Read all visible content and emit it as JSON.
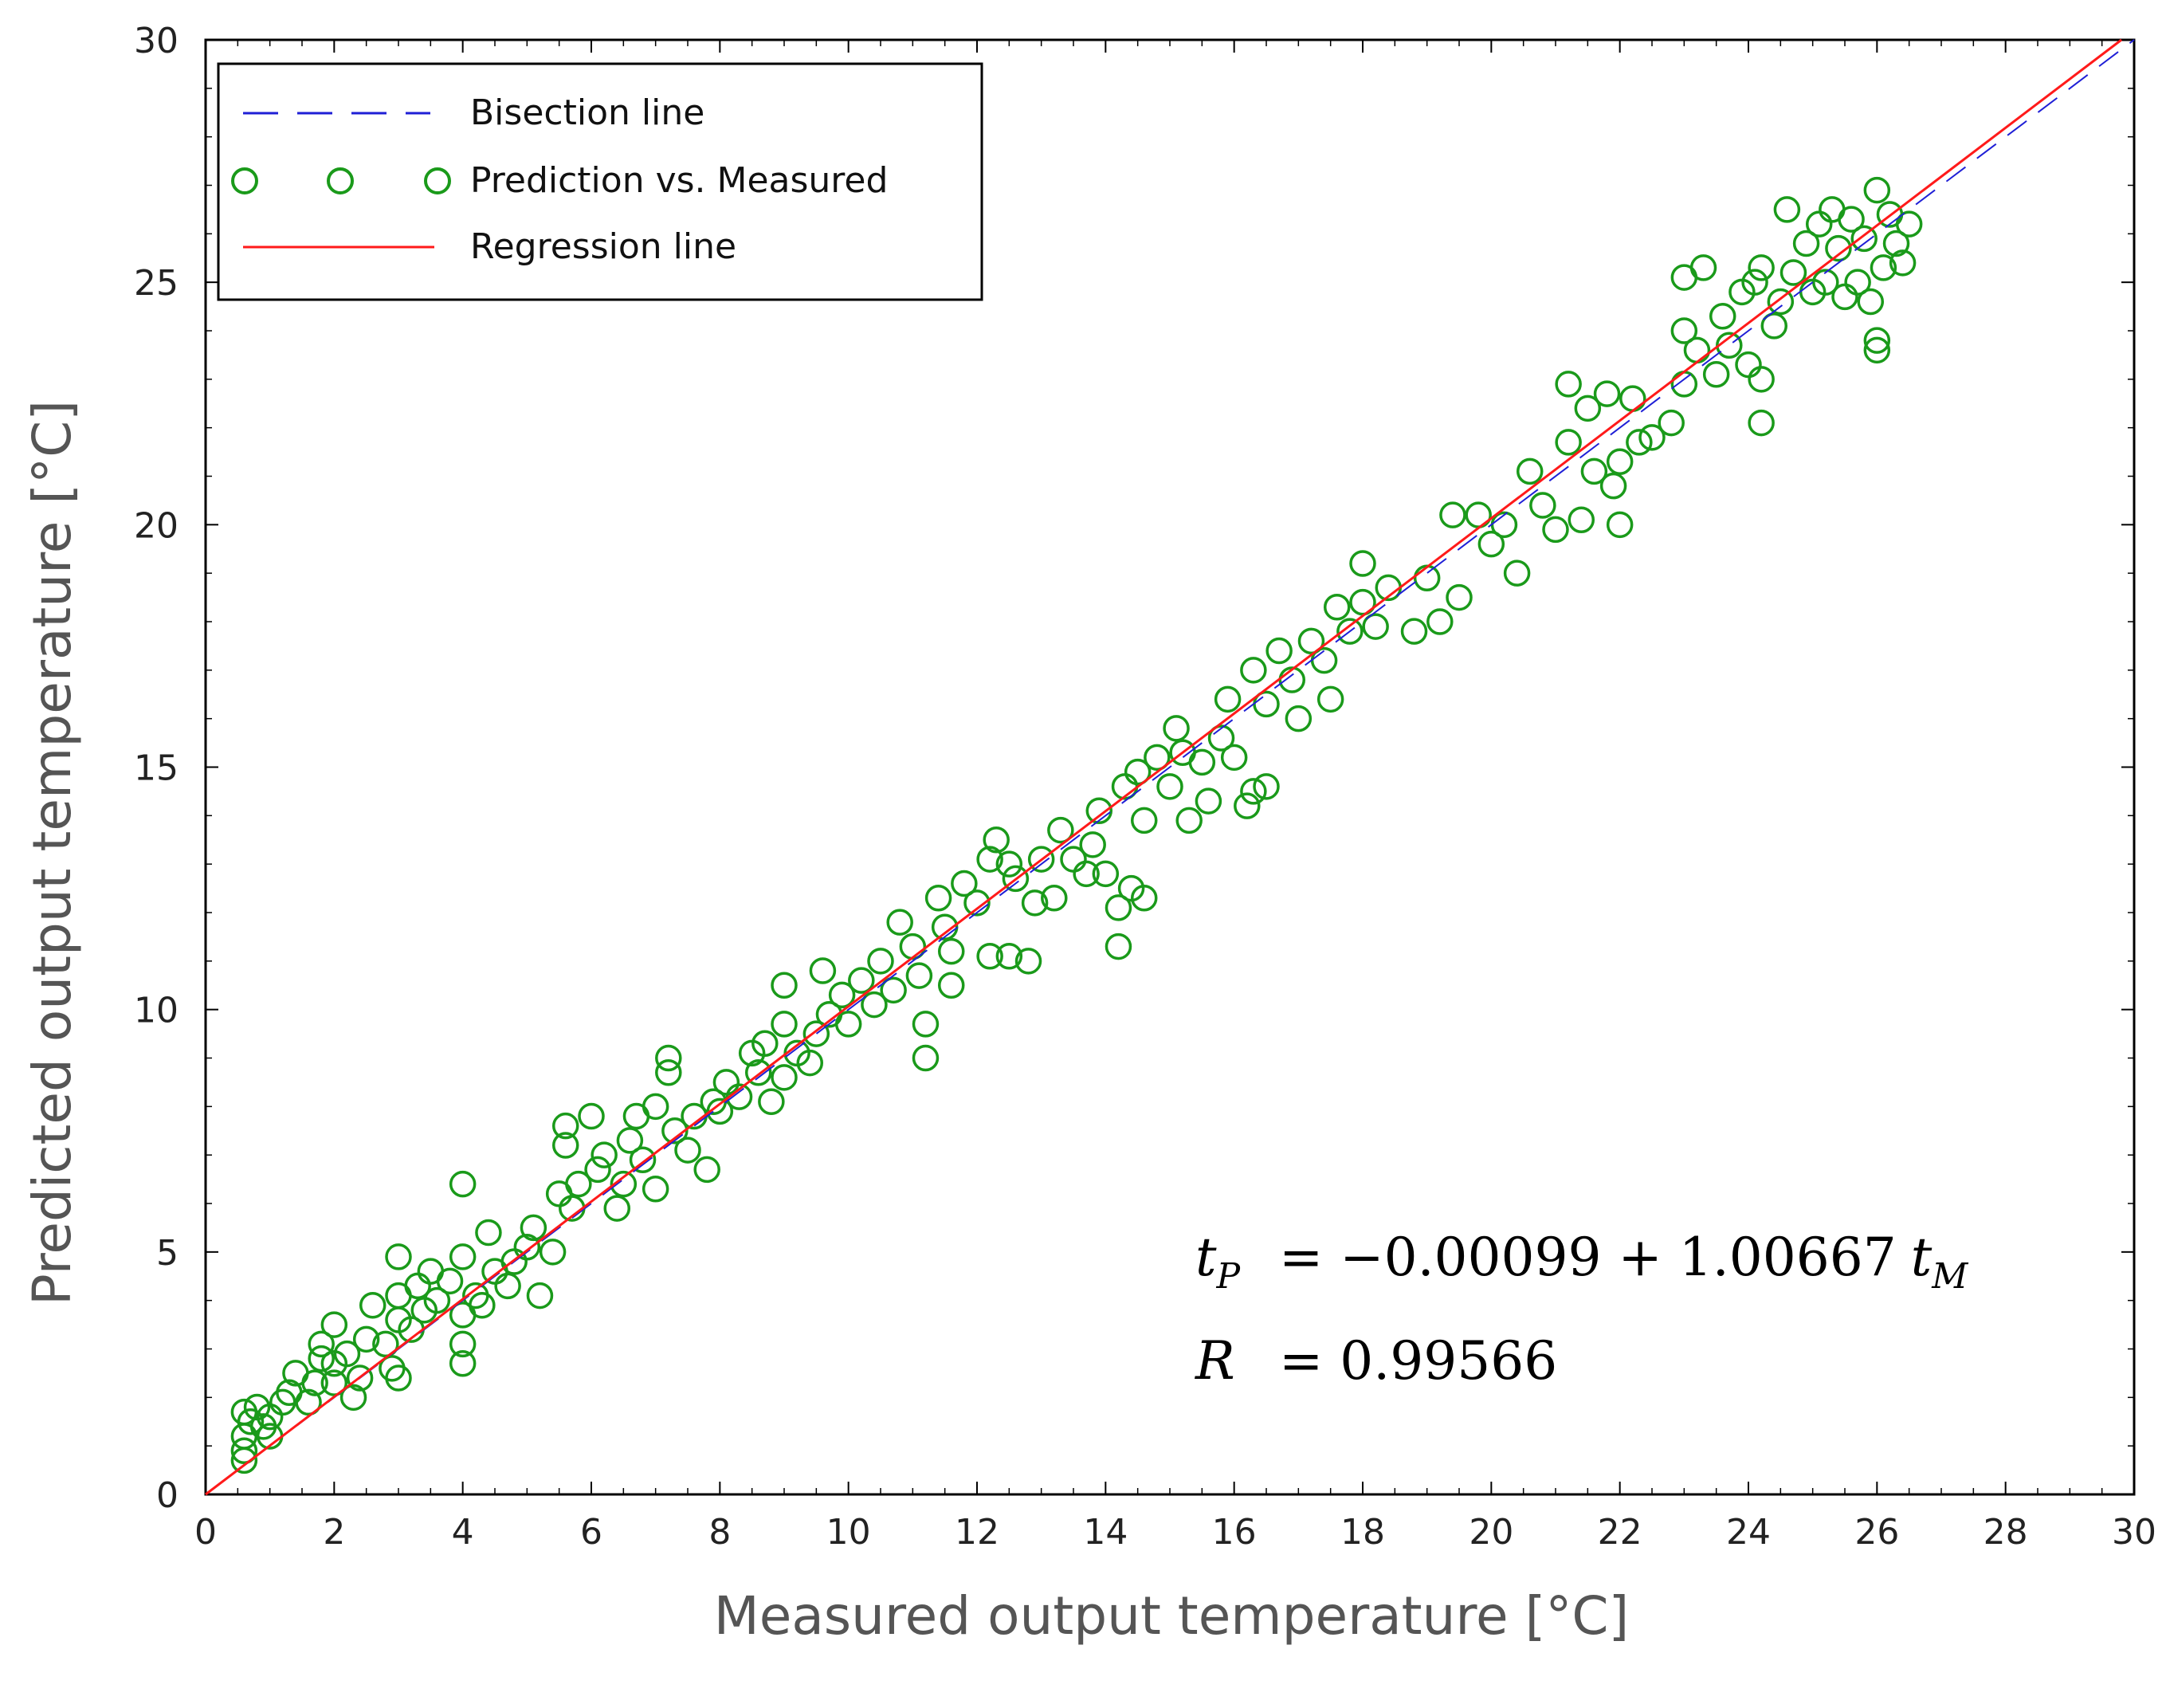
{
  "chart_data": {
    "type": "scatter",
    "xlabel": "Measured output temperature [°C]",
    "ylabel": "Predicted output temperature [°C]",
    "xlim": [
      0,
      30
    ],
    "ylim": [
      0,
      30
    ],
    "xticks": [
      "0",
      "2",
      "4",
      "6",
      "8",
      "10",
      "12",
      "14",
      "16",
      "18",
      "20",
      "22",
      "24",
      "26",
      "28",
      "30"
    ],
    "yticks": [
      "0",
      "5",
      "10",
      "15",
      "20",
      "25",
      "30"
    ],
    "grid": false,
    "legend_position": "top-left",
    "legend": [
      {
        "label": "Bisection line",
        "style": "dashed",
        "color": "#1f1fd6"
      },
      {
        "label": "Prediction vs. Measured",
        "style": "circle-markers",
        "color": "#1a9a1a"
      },
      {
        "label": "Regression line",
        "style": "solid",
        "color": "#ff1a1a"
      }
    ],
    "regression": {
      "intercept": -0.00099,
      "slope": 1.00667
    },
    "bisection": {
      "intercept": 0,
      "slope": 1
    },
    "annotations": {
      "equation": {
        "lhs": "t",
        "lhs_sub": "P",
        "rhs": "= −0.00099 + 1.00667",
        "var": "t",
        "var_sub": "M"
      },
      "correlation": {
        "lhs": "R",
        "rhs": "= 0.99566"
      }
    },
    "series": [
      {
        "name": "Prediction vs. Measured",
        "marker": "circle",
        "color": "#1a9a1a",
        "points": [
          [
            0.6,
            0.7
          ],
          [
            0.6,
            0.9
          ],
          [
            0.6,
            1.2
          ],
          [
            0.7,
            1.5
          ],
          [
            0.6,
            1.7
          ],
          [
            0.8,
            1.8
          ],
          [
            0.9,
            1.4
          ],
          [
            1.0,
            1.2
          ],
          [
            1.0,
            1.6
          ],
          [
            1.2,
            1.9
          ],
          [
            1.3,
            2.1
          ],
          [
            1.4,
            2.5
          ],
          [
            1.6,
            1.9
          ],
          [
            1.7,
            2.3
          ],
          [
            1.8,
            2.8
          ],
          [
            1.8,
            3.1
          ],
          [
            2.0,
            2.3
          ],
          [
            2.0,
            2.7
          ],
          [
            2.0,
            3.5
          ],
          [
            2.2,
            2.9
          ],
          [
            2.3,
            2.0
          ],
          [
            2.4,
            2.4
          ],
          [
            2.5,
            3.2
          ],
          [
            2.6,
            3.9
          ],
          [
            2.8,
            3.1
          ],
          [
            2.9,
            2.6
          ],
          [
            3.0,
            2.4
          ],
          [
            3.0,
            3.6
          ],
          [
            3.0,
            4.1
          ],
          [
            3.0,
            4.9
          ],
          [
            3.2,
            3.4
          ],
          [
            3.3,
            4.3
          ],
          [
            3.4,
            3.8
          ],
          [
            3.5,
            4.6
          ],
          [
            3.6,
            4.0
          ],
          [
            3.8,
            4.4
          ],
          [
            4.0,
            2.7
          ],
          [
            4.0,
            3.1
          ],
          [
            4.0,
            3.7
          ],
          [
            4.0,
            4.9
          ],
          [
            4.0,
            6.4
          ],
          [
            4.2,
            4.1
          ],
          [
            4.3,
            3.9
          ],
          [
            4.4,
            5.4
          ],
          [
            4.5,
            4.6
          ],
          [
            4.7,
            4.3
          ],
          [
            4.8,
            4.8
          ],
          [
            5.0,
            5.1
          ],
          [
            5.1,
            5.5
          ],
          [
            5.2,
            4.1
          ],
          [
            5.4,
            5.0
          ],
          [
            5.5,
            6.2
          ],
          [
            5.6,
            7.2
          ],
          [
            5.6,
            7.6
          ],
          [
            5.7,
            5.9
          ],
          [
            5.8,
            6.4
          ],
          [
            6.0,
            7.8
          ],
          [
            6.1,
            6.7
          ],
          [
            6.2,
            7.0
          ],
          [
            6.4,
            5.9
          ],
          [
            6.5,
            6.4
          ],
          [
            6.6,
            7.3
          ],
          [
            6.7,
            7.8
          ],
          [
            6.8,
            6.9
          ],
          [
            7.0,
            6.3
          ],
          [
            7.0,
            8.0
          ],
          [
            7.2,
            8.7
          ],
          [
            7.2,
            9.0
          ],
          [
            7.3,
            7.5
          ],
          [
            7.5,
            7.1
          ],
          [
            7.6,
            7.8
          ],
          [
            7.8,
            6.7
          ],
          [
            7.9,
            8.1
          ],
          [
            8.0,
            7.9
          ],
          [
            8.1,
            8.5
          ],
          [
            8.3,
            8.2
          ],
          [
            8.5,
            9.1
          ],
          [
            8.6,
            8.7
          ],
          [
            8.7,
            9.3
          ],
          [
            8.8,
            8.1
          ],
          [
            9.0,
            8.6
          ],
          [
            9.0,
            9.7
          ],
          [
            9.0,
            10.5
          ],
          [
            9.2,
            9.1
          ],
          [
            9.4,
            8.9
          ],
          [
            9.5,
            9.5
          ],
          [
            9.6,
            10.8
          ],
          [
            9.7,
            9.9
          ],
          [
            9.9,
            10.3
          ],
          [
            10.0,
            9.7
          ],
          [
            10.2,
            10.6
          ],
          [
            10.4,
            10.1
          ],
          [
            10.5,
            11.0
          ],
          [
            10.7,
            10.4
          ],
          [
            10.8,
            11.8
          ],
          [
            11.0,
            11.3
          ],
          [
            11.1,
            10.7
          ],
          [
            11.2,
            9.0
          ],
          [
            11.2,
            9.7
          ],
          [
            11.4,
            12.3
          ],
          [
            11.5,
            11.7
          ],
          [
            11.6,
            11.2
          ],
          [
            11.6,
            10.5
          ],
          [
            11.8,
            12.6
          ],
          [
            12.0,
            12.2
          ],
          [
            12.2,
            11.1
          ],
          [
            12.2,
            13.1
          ],
          [
            12.3,
            13.5
          ],
          [
            12.5,
            11.1
          ],
          [
            12.5,
            13.0
          ],
          [
            12.6,
            12.7
          ],
          [
            12.8,
            11.0
          ],
          [
            12.9,
            12.2
          ],
          [
            13.0,
            13.1
          ],
          [
            13.2,
            12.3
          ],
          [
            13.3,
            13.7
          ],
          [
            13.5,
            13.1
          ],
          [
            13.7,
            12.8
          ],
          [
            13.8,
            13.4
          ],
          [
            13.9,
            14.1
          ],
          [
            14.0,
            12.8
          ],
          [
            14.2,
            11.3
          ],
          [
            14.2,
            12.1
          ],
          [
            14.3,
            14.6
          ],
          [
            14.4,
            12.5
          ],
          [
            14.5,
            14.9
          ],
          [
            14.6,
            13.9
          ],
          [
            14.6,
            12.3
          ],
          [
            14.8,
            15.2
          ],
          [
            15.0,
            14.6
          ],
          [
            15.1,
            15.8
          ],
          [
            15.2,
            15.3
          ],
          [
            15.3,
            13.9
          ],
          [
            15.5,
            15.1
          ],
          [
            15.6,
            14.3
          ],
          [
            15.8,
            15.6
          ],
          [
            15.9,
            16.4
          ],
          [
            16.0,
            15.2
          ],
          [
            16.2,
            14.2
          ],
          [
            16.3,
            14.5
          ],
          [
            16.3,
            17.0
          ],
          [
            16.5,
            14.6
          ],
          [
            16.5,
            16.3
          ],
          [
            16.7,
            17.4
          ],
          [
            16.9,
            16.8
          ],
          [
            17.0,
            16.0
          ],
          [
            17.2,
            17.6
          ],
          [
            17.4,
            17.2
          ],
          [
            17.5,
            16.4
          ],
          [
            17.6,
            18.3
          ],
          [
            17.8,
            17.8
          ],
          [
            18.0,
            18.4
          ],
          [
            18.0,
            19.2
          ],
          [
            18.2,
            17.9
          ],
          [
            18.4,
            18.7
          ],
          [
            18.8,
            17.8
          ],
          [
            19.0,
            18.9
          ],
          [
            19.2,
            18.0
          ],
          [
            19.4,
            20.2
          ],
          [
            19.5,
            18.5
          ],
          [
            19.8,
            20.2
          ],
          [
            20.0,
            19.6
          ],
          [
            20.2,
            20.0
          ],
          [
            20.4,
            19.0
          ],
          [
            20.6,
            21.1
          ],
          [
            20.8,
            20.4
          ],
          [
            21.0,
            19.9
          ],
          [
            21.2,
            22.9
          ],
          [
            21.2,
            21.7
          ],
          [
            21.4,
            20.1
          ],
          [
            21.5,
            22.4
          ],
          [
            21.6,
            21.1
          ],
          [
            21.8,
            22.7
          ],
          [
            21.9,
            20.8
          ],
          [
            22.0,
            21.3
          ],
          [
            22.0,
            20.0
          ],
          [
            22.2,
            22.6
          ],
          [
            22.3,
            21.7
          ],
          [
            22.5,
            21.8
          ],
          [
            22.8,
            22.1
          ],
          [
            23.0,
            22.9
          ],
          [
            23.0,
            24.0
          ],
          [
            23.0,
            25.1
          ],
          [
            23.2,
            23.6
          ],
          [
            23.3,
            25.3
          ],
          [
            23.5,
            23.1
          ],
          [
            23.6,
            24.3
          ],
          [
            23.7,
            23.7
          ],
          [
            23.9,
            24.8
          ],
          [
            24.0,
            23.3
          ],
          [
            24.1,
            25.0
          ],
          [
            24.2,
            22.1
          ],
          [
            24.2,
            23.0
          ],
          [
            24.2,
            25.3
          ],
          [
            24.4,
            24.1
          ],
          [
            24.5,
            24.6
          ],
          [
            24.6,
            26.5
          ],
          [
            24.7,
            25.2
          ],
          [
            24.9,
            25.8
          ],
          [
            25.0,
            24.8
          ],
          [
            25.1,
            26.2
          ],
          [
            25.2,
            25.0
          ],
          [
            25.3,
            26.5
          ],
          [
            25.4,
            25.7
          ],
          [
            25.5,
            24.7
          ],
          [
            25.6,
            26.3
          ],
          [
            25.7,
            25.0
          ],
          [
            25.8,
            25.9
          ],
          [
            25.9,
            24.6
          ],
          [
            26.0,
            23.6
          ],
          [
            26.0,
            23.8
          ],
          [
            26.0,
            26.9
          ],
          [
            26.1,
            25.3
          ],
          [
            26.2,
            26.4
          ],
          [
            26.3,
            25.8
          ],
          [
            26.4,
            25.4
          ],
          [
            26.5,
            26.2
          ]
        ]
      }
    ]
  }
}
